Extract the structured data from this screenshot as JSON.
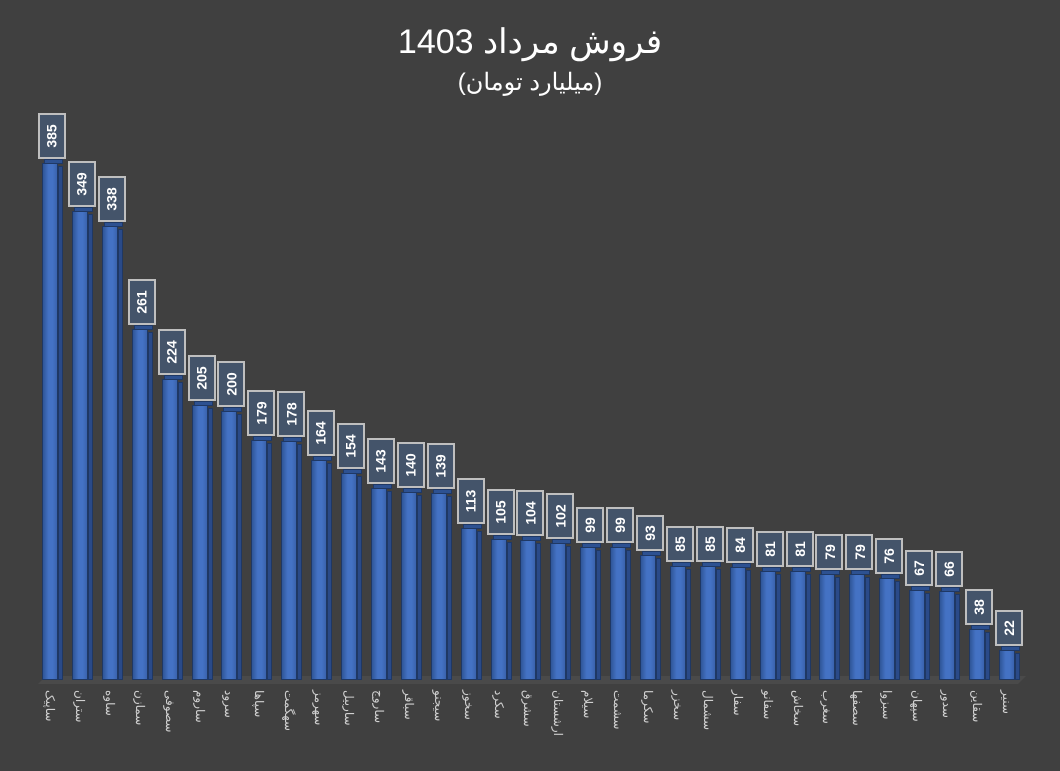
{
  "chart_data": {
    "type": "bar",
    "title": "فروش مرداد 1403",
    "subtitle": "(میلیارد تومان)",
    "xlabel": "",
    "ylabel": "",
    "categories": [
      "ساپیک",
      "ستران",
      "ساوه",
      "سمازن",
      "سصوفی",
      "ساروم",
      "سرود",
      "سپاها",
      "سهگمت",
      "سهرمز",
      "ساربیل",
      "ساروج",
      "سباقر",
      "سیجنو",
      "سخوز",
      "سکرد",
      "سشرق",
      "ارشستان",
      "سیلام",
      "سشمت",
      "سکرما",
      "سخزر",
      "سشمال",
      "سفار",
      "سفانو",
      "سخاش",
      "سغرب",
      "سصفها",
      "سبزوا",
      "سپهان",
      "سدور",
      "سقاین",
      "سنیر"
    ],
    "values": [
      385,
      349,
      338,
      261,
      224,
      205,
      200,
      179,
      178,
      164,
      154,
      143,
      140,
      139,
      113,
      105,
      104,
      102,
      99,
      99,
      93,
      85,
      85,
      84,
      81,
      81,
      79,
      79,
      76,
      67,
      66,
      38,
      22
    ],
    "ylim": [
      0,
      400
    ],
    "grid": false,
    "legend": "none",
    "data_labels": true,
    "style": "3d-column",
    "colors": {
      "background": "#404040",
      "bar": "#4472c4",
      "bar_border": "#1f3864",
      "label_fill": "#44546a",
      "label_border": "#bfbfbf",
      "text": "#ffffff"
    }
  }
}
